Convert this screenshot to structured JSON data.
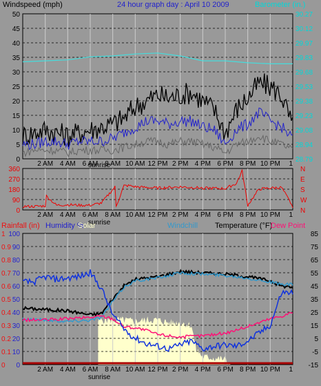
{
  "colors": {
    "background": "#999999",
    "grid": "#000000",
    "windspeed_axis": "#000000",
    "barometer_axis": "#00d8d8",
    "barometer": "#44dddd",
    "wind_gust": "#000000",
    "wind_avg": "#2222cc",
    "wind_low": "#666666",
    "direction": "#ee0000",
    "direction_axis": "#ee0000",
    "rain_axis": "#ee1111",
    "humidity_axis": "#2222cc",
    "solar_fill": "#ffffcc",
    "temp_line": "#000000",
    "windchill_line": "#3399cc",
    "dewpoint_line": "#ff1177",
    "humidity_line": "#1133dd",
    "humidity_low_line": "#2244ff",
    "rain_baseline": "#aa0000"
  },
  "chart_data": [
    {
      "type": "line",
      "title": "24 hour graph day : April 10 2009",
      "ylabel": "Windspeed (mph)",
      "y2label": "Barometer (in.)",
      "ylim": [
        0,
        50
      ],
      "y_ticks": [
        "0",
        "5",
        "10",
        "15",
        "20",
        "25",
        "30",
        "35",
        "40",
        "45",
        "50"
      ],
      "y2lim": [
        28.79,
        30.27
      ],
      "y2_ticks": [
        "28.79",
        "28.94",
        "29.08",
        "29.23",
        "29.38",
        "29.53",
        "29.68",
        "29.83",
        "29.97",
        "30.12",
        "30.27"
      ],
      "x_ticks": [
        "2 AM",
        "4 AM",
        "6 AM",
        "8 AM",
        "10 AM",
        "12 PM",
        "2 PM",
        "4 PM",
        "6 PM",
        "8 PM",
        "10 PM",
        "1"
      ],
      "x_ticks_hours": [
        2,
        4,
        6,
        8,
        10,
        12,
        14,
        16,
        18,
        20,
        22,
        24
      ],
      "sunrise_label": "sunrise",
      "sunrise_hour": 6.5,
      "series": [
        {
          "name": "Barometer",
          "axis": "right",
          "hours": [
            0,
            2,
            4,
            6,
            8,
            10,
            12,
            14,
            16,
            18,
            20,
            22,
            24
          ],
          "values": [
            29.78,
            29.79,
            29.8,
            29.83,
            29.84,
            29.86,
            29.87,
            29.84,
            29.79,
            29.79,
            29.77,
            29.76,
            29.76
          ]
        },
        {
          "name": "Gust",
          "axis": "left",
          "hours": [
            0,
            1,
            2,
            3,
            4,
            5,
            6,
            7,
            8,
            9,
            10,
            11,
            12,
            13,
            14,
            15,
            16,
            17,
            18,
            19,
            20,
            21,
            22,
            23,
            24
          ],
          "values": [
            8,
            9,
            10,
            9,
            8,
            9,
            10,
            11,
            12,
            14,
            18,
            20,
            22,
            21,
            22,
            23,
            20,
            17,
            9,
            17,
            21,
            26,
            25,
            22,
            11
          ]
        },
        {
          "name": "Average",
          "axis": "left",
          "hours": [
            0,
            1,
            2,
            3,
            4,
            5,
            6,
            7,
            8,
            9,
            10,
            11,
            12,
            13,
            14,
            15,
            16,
            17,
            18,
            19,
            20,
            21,
            22,
            23,
            24
          ],
          "values": [
            5,
            5,
            6,
            6,
            5,
            6,
            6,
            6,
            7,
            9,
            11,
            13,
            13,
            12,
            13,
            13,
            11,
            10,
            5,
            10,
            12,
            16,
            13,
            11,
            7
          ]
        },
        {
          "name": "Low",
          "axis": "left",
          "hours": [
            0,
            1,
            2,
            3,
            4,
            5,
            6,
            7,
            8,
            9,
            10,
            11,
            12,
            13,
            14,
            15,
            16,
            17,
            18,
            19,
            20,
            21,
            22,
            23,
            24
          ],
          "values": [
            2,
            3,
            3,
            3,
            2,
            3,
            3,
            3,
            3,
            4,
            5,
            6,
            6,
            5,
            6,
            6,
            5,
            4,
            2,
            5,
            6,
            8,
            6,
            5,
            3
          ]
        }
      ]
    },
    {
      "type": "line",
      "ylim": [
        0,
        360
      ],
      "y_ticks": [
        "0",
        "90",
        "180",
        "270",
        "360"
      ],
      "y2_ticks": [
        "N",
        "W",
        "S",
        "E",
        "N"
      ],
      "x_ticks": [
        "2 AM",
        "4 AM",
        "6 AM",
        "8 AM",
        "10 AM",
        "12 PM",
        "2 PM",
        "4 PM",
        "6 PM",
        "8 PM",
        "10 PM",
        "1"
      ],
      "sunrise_label": "sunrise",
      "series": [
        {
          "name": "Wind Direction",
          "hours": [
            0,
            1,
            2,
            2.1,
            3,
            4,
            5,
            6,
            7,
            8.2,
            8.3,
            9,
            9.4,
            9.5,
            10,
            12,
            14,
            16,
            18,
            19,
            19.5,
            20,
            21,
            22,
            23,
            24
          ],
          "values": [
            30,
            30,
            35,
            120,
            40,
            45,
            40,
            40,
            60,
            200,
            30,
            210,
            210,
            210,
            200,
            190,
            200,
            190,
            185,
            230,
            340,
            40,
            180,
            190,
            195,
            30
          ]
        }
      ]
    },
    {
      "type": "line",
      "labels": {
        "rainfall": "Rainfall (in)",
        "humidity": "Humidity %",
        "solar": "Solar",
        "windchill": "Windchill",
        "temperature": "Temperature (°F)",
        "dewpoint": "Dew Point"
      },
      "y_ticks_rain": [
        "0",
        "0.1",
        "0.2",
        "0.3",
        "0.4",
        "0.5",
        "0.6",
        "0.7",
        "0.8",
        "0.9",
        "1"
      ],
      "y_ticks_humidity": [
        "0",
        "10",
        "20",
        "30",
        "40",
        "50",
        "60",
        "70",
        "80",
        "90",
        "100"
      ],
      "ylim_temp": [
        -15,
        85
      ],
      "y_ticks_temp": [
        "-15",
        "-5",
        "5",
        "15",
        "25",
        "35",
        "45",
        "55",
        "65",
        "75",
        "85"
      ],
      "x_ticks": [
        "2 AM",
        "4 AM",
        "6 AM",
        "8 AM",
        "10 AM",
        "12 PM",
        "2 PM",
        "4 PM",
        "6 PM",
        "8 PM",
        "10 PM",
        "1"
      ],
      "sunrise_label": "sunrise",
      "series": [
        {
          "name": "Temperature",
          "axis": "temp",
          "hours": [
            0,
            2,
            4,
            6,
            7,
            8,
            9,
            10,
            12,
            14,
            16,
            18,
            20,
            22,
            23,
            24
          ],
          "values": [
            28,
            27,
            26,
            23,
            24,
            35,
            45,
            50,
            52,
            56,
            55,
            54,
            52,
            49,
            45,
            44
          ]
        },
        {
          "name": "Windchill",
          "axis": "temp",
          "hours": [
            0,
            2,
            4,
            6,
            7,
            8,
            9,
            10,
            12,
            14,
            16,
            18,
            20,
            22,
            23,
            24
          ],
          "values": [
            20,
            19,
            18,
            19,
            21,
            33,
            44,
            49,
            51,
            55,
            54,
            53,
            51,
            48,
            46,
            46
          ]
        },
        {
          "name": "Dew Point",
          "axis": "temp",
          "hours": [
            0,
            2,
            4,
            6,
            7,
            8,
            9,
            10,
            11,
            12,
            14,
            16,
            18,
            20,
            21,
            22,
            23,
            24
          ],
          "values": [
            19,
            19,
            20,
            21,
            22,
            20,
            14,
            13,
            11,
            8,
            6,
            7,
            9,
            14,
            17,
            20,
            22,
            25
          ]
        },
        {
          "name": "Humidity",
          "axis": "humidity",
          "hours": [
            0,
            1,
            2,
            3,
            4,
            5,
            6,
            7,
            8,
            9,
            10,
            11,
            12,
            13,
            14,
            15,
            16,
            17,
            18,
            19,
            20,
            21,
            22,
            23,
            24
          ],
          "values": [
            63,
            63,
            67,
            65,
            66,
            67,
            70,
            58,
            38,
            27,
            20,
            16,
            14,
            12,
            15,
            18,
            12,
            14,
            15,
            14,
            18,
            24,
            30,
            55,
            55
          ]
        },
        {
          "name": "Solar",
          "axis": "humidity",
          "hours": [
            6.7,
            7,
            8,
            9,
            10,
            11,
            12,
            13,
            14,
            15,
            15.4,
            16,
            17,
            18,
            18.5
          ],
          "values": [
            33,
            34,
            34,
            34,
            33,
            34,
            34,
            32,
            32,
            30,
            12,
            6,
            5,
            4,
            0
          ]
        }
      ]
    }
  ]
}
